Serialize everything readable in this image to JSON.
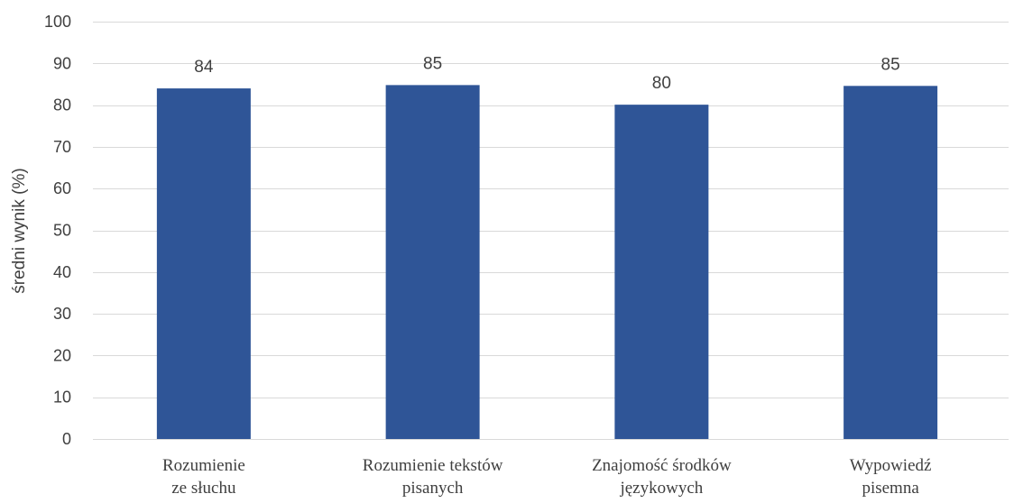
{
  "chart_data": {
    "type": "bar",
    "title": "",
    "xlabel": "",
    "ylabel": "średni wynik (%)",
    "ylim": [
      0,
      100
    ],
    "y_ticks": [
      0,
      10,
      20,
      30,
      40,
      50,
      60,
      70,
      80,
      90,
      100
    ],
    "grid": true,
    "categories": [
      [
        "Rozumienie",
        "ze słuchu"
      ],
      [
        "Rozumienie tekstów",
        "pisanych"
      ],
      [
        "Znajomość środków",
        "językowych"
      ],
      [
        "Wypowiedź",
        "pisemna"
      ]
    ],
    "values": [
      84,
      85,
      80,
      85
    ],
    "plotted_values": [
      84,
      84.8,
      80.1,
      84.6
    ],
    "data_labels": [
      "84",
      "85",
      "80",
      "85"
    ],
    "bar_color": "#2F5597",
    "grid_color": "#D9D9D9",
    "text_color": "#404040"
  }
}
